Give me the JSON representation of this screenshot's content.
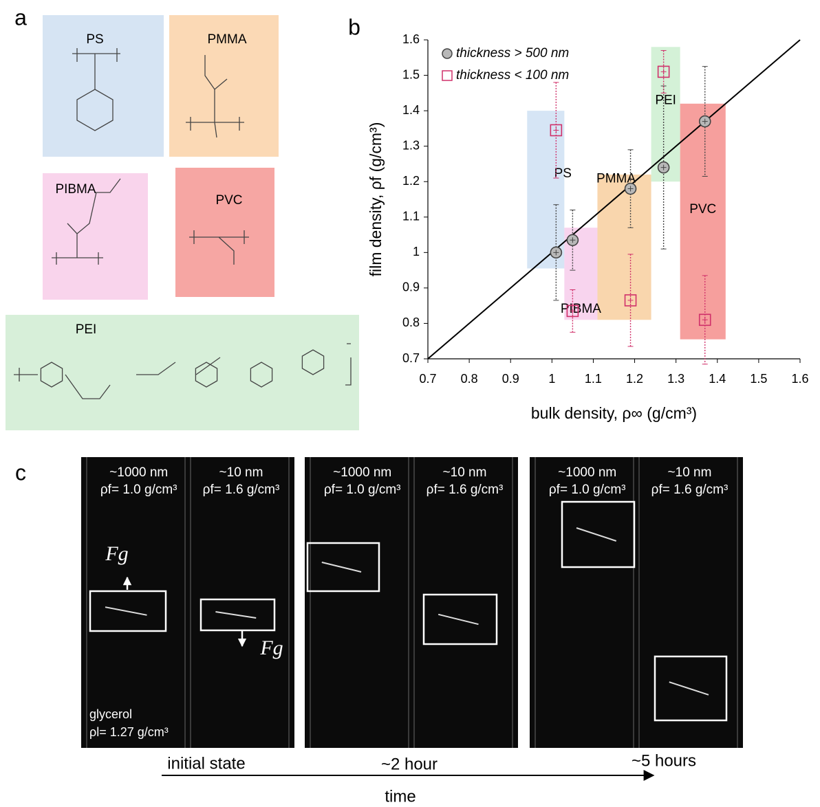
{
  "panel_labels": [
    "a",
    "b",
    "c"
  ],
  "structures": [
    {
      "name": "PS",
      "color": "#d6e4f3"
    },
    {
      "name": "PMMA",
      "color": "#fbd9b5"
    },
    {
      "name": "PIBMA",
      "color": "#f9d4ec"
    },
    {
      "name": "PVC",
      "color": "#f6a6a3"
    },
    {
      "name": "PEI",
      "color": "#d7efd9"
    }
  ],
  "chart_data": {
    "type": "scatter",
    "xlabel": "bulk density, ρ∞ (g/cm³)",
    "ylabel": "film density, ρf (g/cm³)",
    "xlim": [
      0.7,
      1.6
    ],
    "ylim": [
      0.7,
      1.6
    ],
    "xticks": [
      0.7,
      0.8,
      0.9,
      1,
      1.1,
      1.2,
      1.3,
      1.4,
      1.5,
      1.6
    ],
    "yticks": [
      0.7,
      0.8,
      0.9,
      1,
      1.1,
      1.2,
      1.3,
      1.4,
      1.5,
      1.6
    ],
    "legend": "top-left",
    "series": [
      {
        "name": "thickness > 500 nm",
        "color": "#444444",
        "x": [
          1.01,
          1.05,
          1.19,
          1.27,
          1.37
        ],
        "values": [
          1.0,
          1.035,
          1.18,
          1.24,
          1.37
        ],
        "errors": [
          0.135,
          0.085,
          0.11,
          0.23,
          0.155
        ]
      },
      {
        "name": "thickness < 100 nm",
        "color": "#d0306a",
        "x": [
          1.01,
          1.05,
          1.19,
          1.27,
          1.37
        ],
        "values": [
          1.345,
          0.835,
          0.865,
          1.51,
          0.81
        ],
        "errors": [
          0.135,
          0.06,
          0.13,
          0.06,
          0.125
        ]
      }
    ],
    "regions": [
      {
        "label": "PS",
        "color": "#cfe0f3",
        "xlim": [
          0.94,
          1.03
        ],
        "ylim": [
          0.955,
          1.4
        ]
      },
      {
        "label": "PIBMA",
        "color": "#f7cdeb",
        "xlim": [
          1.03,
          1.11
        ],
        "ylim": [
          0.81,
          1.07
        ]
      },
      {
        "label": "PMMA",
        "color": "#f8cf9f",
        "xlim": [
          1.11,
          1.24
        ],
        "ylim": [
          0.81,
          1.22
        ]
      },
      {
        "label": "PEI",
        "color": "#cdeed0",
        "xlim": [
          1.24,
          1.31
        ],
        "ylim": [
          1.2,
          1.58
        ]
      },
      {
        "label": "PVC",
        "color": "#f48e8c",
        "xlim": [
          1.31,
          1.42
        ],
        "ylim": [
          0.755,
          1.42
        ]
      }
    ]
  },
  "photos": [
    {
      "columns": [
        {
          "thickness": "~1000 nm",
          "density": "ρf= 1.0 g/cm³"
        },
        {
          "thickness": "~10 nm",
          "density": "ρf= 1.6 g/cm³"
        }
      ],
      "time_label": "initial state"
    },
    {
      "columns": [
        {
          "thickness": "~1000 nm",
          "density": "ρf= 1.0 g/cm³"
        },
        {
          "thickness": "~10 nm",
          "density": "ρf= 1.6 g/cm³"
        }
      ],
      "time_label": "~2 hour"
    },
    {
      "columns": [
        {
          "thickness": "~1000 nm",
          "density": "ρf= 1.0 g/cm³"
        },
        {
          "thickness": "~10 nm",
          "density": "ρf= 1.6 g/cm³"
        }
      ],
      "time_label": "~5 hours"
    }
  ],
  "force_label": "Fg",
  "medium": {
    "name": "glycerol",
    "density": "ρl= 1.27 g/cm³"
  },
  "time_axis": "time"
}
